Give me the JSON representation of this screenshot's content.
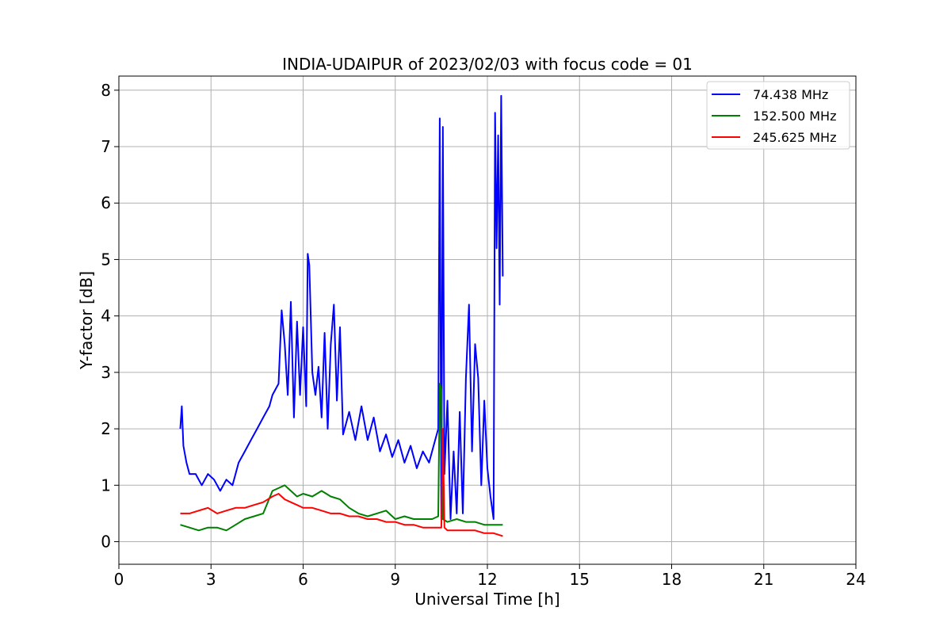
{
  "chart_data": {
    "type": "line",
    "title": "INDIA-UDAIPUR of 2023/02/03 with focus code = 01",
    "xlabel": "Universal Time [h]",
    "ylabel": "Y-factor [dB]",
    "xlim": [
      0,
      24
    ],
    "ylim": [
      -0.4,
      8.25
    ],
    "xticks": [
      0,
      3,
      6,
      9,
      12,
      15,
      18,
      21,
      24
    ],
    "yticks": [
      0,
      1,
      2,
      3,
      4,
      5,
      6,
      7,
      8
    ],
    "grid": true,
    "legend_position": "top-right",
    "series": [
      {
        "name": "74.438 MHz",
        "color": "#0000ff",
        "x": [
          2.0,
          2.05,
          2.1,
          2.2,
          2.3,
          2.5,
          2.7,
          2.9,
          3.1,
          3.3,
          3.5,
          3.7,
          3.9,
          4.1,
          4.3,
          4.5,
          4.7,
          4.9,
          5.0,
          5.2,
          5.3,
          5.4,
          5.5,
          5.6,
          5.7,
          5.8,
          5.9,
          6.0,
          6.1,
          6.15,
          6.2,
          6.3,
          6.4,
          6.5,
          6.6,
          6.7,
          6.8,
          6.9,
          7.0,
          7.1,
          7.2,
          7.3,
          7.5,
          7.7,
          7.9,
          8.1,
          8.3,
          8.5,
          8.7,
          8.9,
          9.1,
          9.3,
          9.5,
          9.7,
          9.9,
          10.1,
          10.3,
          10.4,
          10.45,
          10.5,
          10.55,
          10.6,
          10.7,
          10.8,
          10.9,
          11.0,
          11.1,
          11.2,
          11.3,
          11.4,
          11.5,
          11.6,
          11.7,
          11.8,
          11.9,
          12.0,
          12.1,
          12.2,
          12.25,
          12.3,
          12.35,
          12.4,
          12.45,
          12.5
        ],
        "y": [
          2.0,
          2.4,
          1.7,
          1.4,
          1.2,
          1.2,
          1.0,
          1.2,
          1.1,
          0.9,
          1.1,
          1.0,
          1.4,
          1.6,
          1.8,
          2.0,
          2.2,
          2.4,
          2.6,
          2.8,
          4.1,
          3.5,
          2.6,
          4.25,
          2.2,
          3.9,
          2.6,
          3.8,
          2.4,
          5.1,
          4.9,
          3.0,
          2.6,
          3.1,
          2.2,
          3.7,
          2.0,
          3.5,
          4.2,
          2.5,
          3.8,
          1.9,
          2.3,
          1.8,
          2.4,
          1.8,
          2.2,
          1.6,
          1.9,
          1.5,
          1.8,
          1.4,
          1.7,
          1.3,
          1.6,
          1.4,
          1.8,
          2.0,
          7.5,
          0.4,
          7.35,
          1.2,
          2.5,
          0.4,
          1.6,
          0.5,
          2.3,
          0.5,
          2.9,
          4.2,
          1.6,
          3.5,
          2.9,
          1.0,
          2.5,
          1.3,
          0.8,
          0.4,
          7.6,
          5.2,
          7.2,
          4.2,
          7.9,
          4.7
        ]
      },
      {
        "name": "152.500 MHz",
        "color": "#008000",
        "x": [
          2.0,
          2.3,
          2.6,
          2.9,
          3.2,
          3.5,
          3.8,
          4.1,
          4.4,
          4.7,
          5.0,
          5.2,
          5.4,
          5.6,
          5.8,
          6.0,
          6.3,
          6.6,
          6.9,
          7.2,
          7.5,
          7.8,
          8.1,
          8.4,
          8.7,
          9.0,
          9.3,
          9.6,
          9.9,
          10.2,
          10.4,
          10.45,
          10.5,
          10.55,
          10.7,
          11.0,
          11.3,
          11.6,
          11.9,
          12.2,
          12.5
        ],
        "y": [
          0.3,
          0.25,
          0.2,
          0.25,
          0.25,
          0.2,
          0.3,
          0.4,
          0.45,
          0.5,
          0.9,
          0.95,
          1.0,
          0.9,
          0.8,
          0.85,
          0.8,
          0.9,
          0.8,
          0.75,
          0.6,
          0.5,
          0.45,
          0.5,
          0.55,
          0.4,
          0.45,
          0.4,
          0.4,
          0.4,
          0.45,
          2.8,
          2.7,
          0.4,
          0.35,
          0.4,
          0.35,
          0.35,
          0.3,
          0.3,
          0.3
        ]
      },
      {
        "name": "245.625 MHz",
        "color": "#ff0000",
        "x": [
          2.0,
          2.3,
          2.6,
          2.9,
          3.2,
          3.5,
          3.8,
          4.1,
          4.4,
          4.7,
          5.0,
          5.2,
          5.4,
          5.6,
          5.8,
          6.0,
          6.3,
          6.6,
          6.9,
          7.2,
          7.5,
          7.8,
          8.1,
          8.4,
          8.7,
          9.0,
          9.3,
          9.6,
          9.9,
          10.2,
          10.5,
          10.55,
          10.6,
          10.7,
          11.0,
          11.3,
          11.6,
          11.9,
          12.2,
          12.5
        ],
        "y": [
          0.5,
          0.5,
          0.55,
          0.6,
          0.5,
          0.55,
          0.6,
          0.6,
          0.65,
          0.7,
          0.8,
          0.85,
          0.75,
          0.7,
          0.65,
          0.6,
          0.6,
          0.55,
          0.5,
          0.5,
          0.45,
          0.45,
          0.4,
          0.4,
          0.35,
          0.35,
          0.3,
          0.3,
          0.25,
          0.25,
          0.25,
          2.0,
          0.25,
          0.2,
          0.2,
          0.2,
          0.2,
          0.15,
          0.15,
          0.1
        ]
      }
    ]
  }
}
